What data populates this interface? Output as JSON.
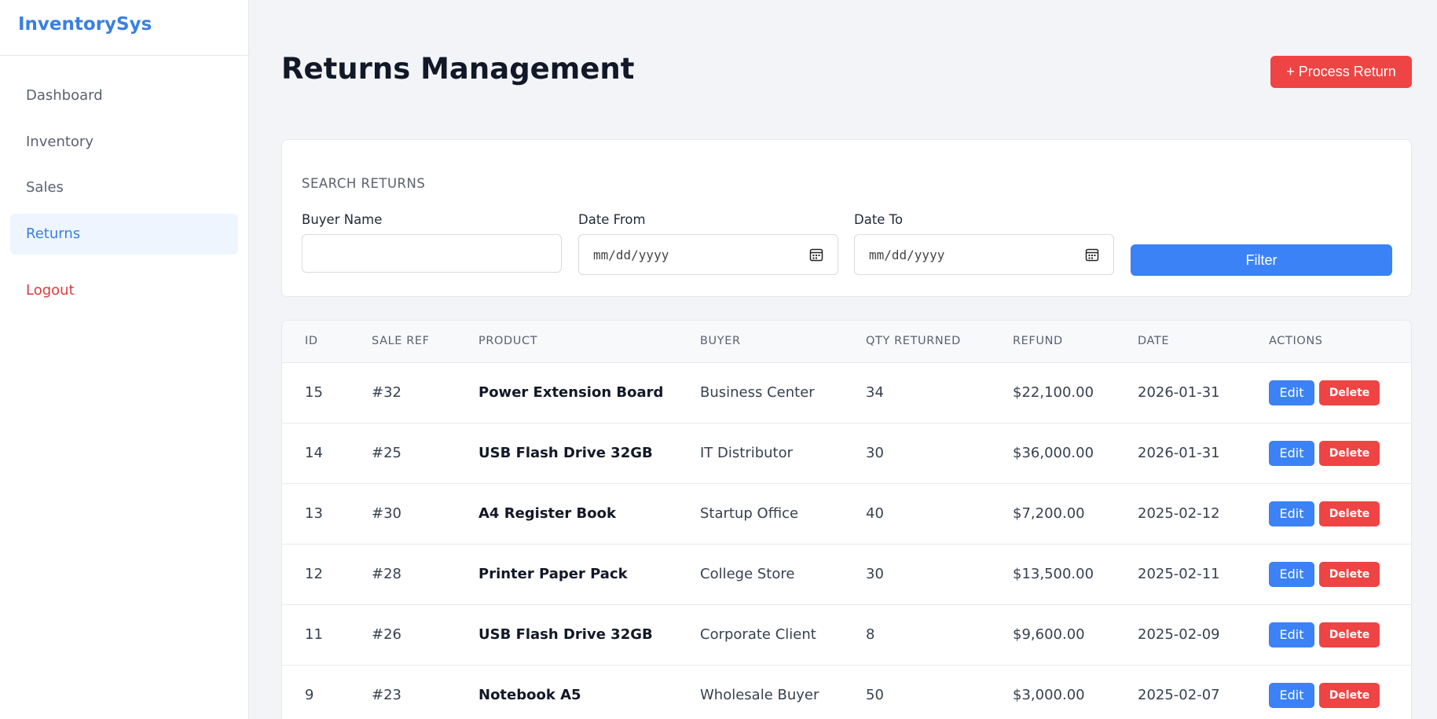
{
  "app": {
    "brand": "InventorySys"
  },
  "sidebar": {
    "items": [
      {
        "label": "Dashboard",
        "active": false
      },
      {
        "label": "Inventory",
        "active": false
      },
      {
        "label": "Sales",
        "active": false
      },
      {
        "label": "Returns",
        "active": true
      }
    ],
    "logout": "Logout"
  },
  "header": {
    "title": "Returns Management",
    "process_button": "+ Process Return"
  },
  "search": {
    "title": "SEARCH RETURNS",
    "buyer_label": "Buyer Name",
    "buyer_value": "",
    "date_from_label": "Date From",
    "date_from_placeholder": "mm/dd/yyyy",
    "date_to_label": "Date To",
    "date_to_placeholder": "mm/dd/yyyy",
    "filter_button": "Filter"
  },
  "table": {
    "columns": [
      "ID",
      "SALE REF",
      "PRODUCT",
      "BUYER",
      "QTY RETURNED",
      "REFUND",
      "DATE",
      "ACTIONS"
    ],
    "edit_label": "Edit",
    "delete_label": "Delete",
    "rows": [
      {
        "id": "15",
        "sale_ref": "#32",
        "product": "Power Extension Board",
        "buyer": "Business Center",
        "qty": "34",
        "refund": "$22,100.00",
        "date": "2026-01-31"
      },
      {
        "id": "14",
        "sale_ref": "#25",
        "product": "USB Flash Drive 32GB",
        "buyer": "IT Distributor",
        "qty": "30",
        "refund": "$36,000.00",
        "date": "2026-01-31"
      },
      {
        "id": "13",
        "sale_ref": "#30",
        "product": "A4 Register Book",
        "buyer": "Startup Office",
        "qty": "40",
        "refund": "$7,200.00",
        "date": "2025-02-12"
      },
      {
        "id": "12",
        "sale_ref": "#28",
        "product": "Printer Paper Pack",
        "buyer": "College Store",
        "qty": "30",
        "refund": "$13,500.00",
        "date": "2025-02-11"
      },
      {
        "id": "11",
        "sale_ref": "#26",
        "product": "USB Flash Drive 32GB",
        "buyer": "Corporate Client",
        "qty": "8",
        "refund": "$9,600.00",
        "date": "2025-02-09"
      },
      {
        "id": "9",
        "sale_ref": "#23",
        "product": "Notebook A5",
        "buyer": "Wholesale Buyer",
        "qty": "50",
        "refund": "$3,000.00",
        "date": "2025-02-07"
      }
    ]
  },
  "colors": {
    "accent": "#3b82f6",
    "danger": "#ef4444",
    "brand": "#3b7fe0"
  }
}
